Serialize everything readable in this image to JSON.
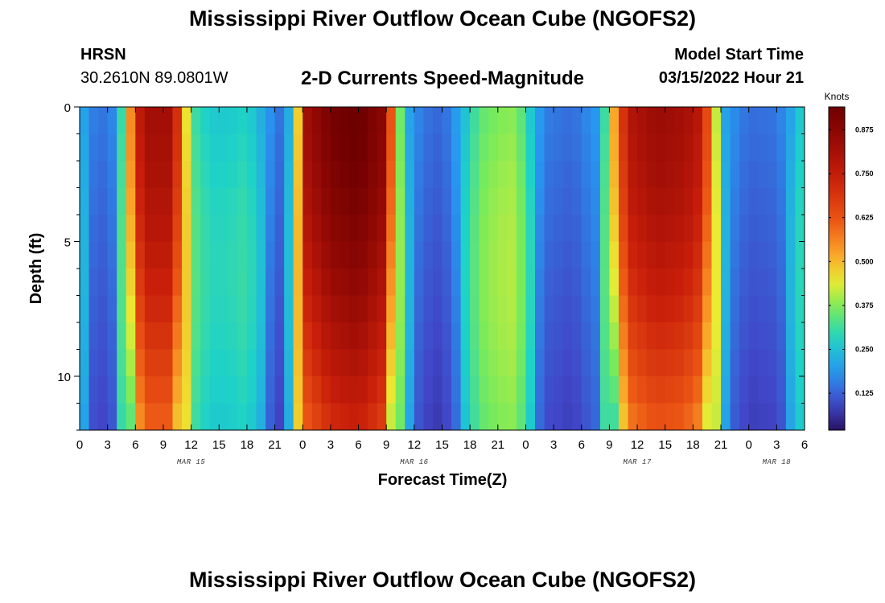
{
  "page": {
    "title": "Mississippi River Outflow Ocean Cube (NGOFS2)",
    "footer_title": "Mississippi River Outflow Ocean Cube (NGOFS2)"
  },
  "station": {
    "code": "HRSN",
    "coords": "30.2610N  89.0801W"
  },
  "model": {
    "start_label": "Model Start Time",
    "start_value": "03/15/2022 Hour 21"
  },
  "chart_data": {
    "type": "heatmap",
    "title": "2-D Currents Speed-Magnitude",
    "xlabel": "Forecast Time(Z)",
    "ylabel": "Depth (ft)",
    "x_tick_labels": [
      "0",
      "3",
      "6",
      "9",
      "12",
      "15",
      "18",
      "21",
      "0",
      "3",
      "6",
      "9",
      "12",
      "15",
      "18",
      "21",
      "0",
      "3",
      "6",
      "9",
      "12",
      "15",
      "18",
      "21",
      "0",
      "3",
      "6"
    ],
    "x_range_hours": [
      0,
      78
    ],
    "x_start": "03/15/2022 00Z",
    "date_labels": [
      {
        "text": "MAR 15",
        "hour": 12
      },
      {
        "text": "MAR 16",
        "hour": 36
      },
      {
        "text": "MAR 17",
        "hour": 60
      },
      {
        "text": "MAR 18",
        "hour": 75
      }
    ],
    "y_tick_labels": [
      "0",
      "5",
      "10"
    ],
    "y_range_ft": [
      0,
      12
    ],
    "y_inverted": true,
    "colorbar": {
      "unit": "Knots",
      "range": [
        0.02,
        0.94
      ],
      "tick_labels": [
        "0.875",
        "0.750",
        "0.625",
        "0.500",
        "0.375",
        "0.250",
        "0.125"
      ],
      "tick_values": [
        0.875,
        0.75,
        0.625,
        0.5,
        0.375,
        0.25,
        0.125
      ]
    },
    "depths_ft": [
      0.5,
      1.5,
      2.5,
      3.5,
      4.5,
      5.5,
      6.5,
      7.5,
      8.5,
      9.5,
      10.5,
      11.5
    ],
    "surface_speed_knots": [
      {
        "hour": 0,
        "v": 0.22
      },
      {
        "hour": 2,
        "v": 0.14
      },
      {
        "hour": 4,
        "v": 0.18
      },
      {
        "hour": 5,
        "v": 0.42
      },
      {
        "hour": 6.2,
        "v": 0.74
      },
      {
        "hour": 7.5,
        "v": 0.82
      },
      {
        "hour": 10,
        "v": 0.82
      },
      {
        "hour": 11,
        "v": 0.58
      },
      {
        "hour": 12,
        "v": 0.32
      },
      {
        "hour": 14,
        "v": 0.26
      },
      {
        "hour": 16,
        "v": 0.26
      },
      {
        "hour": 18,
        "v": 0.28
      },
      {
        "hour": 20,
        "v": 0.2
      },
      {
        "hour": 22,
        "v": 0.13
      },
      {
        "hour": 23.2,
        "v": 0.34
      },
      {
        "hour": 24.3,
        "v": 0.82
      },
      {
        "hour": 27,
        "v": 0.92
      },
      {
        "hour": 30,
        "v": 0.95
      },
      {
        "hour": 32.5,
        "v": 0.88
      },
      {
        "hour": 33.8,
        "v": 0.55
      },
      {
        "hour": 35,
        "v": 0.22
      },
      {
        "hour": 37,
        "v": 0.15
      },
      {
        "hour": 39,
        "v": 0.13
      },
      {
        "hour": 41,
        "v": 0.22
      },
      {
        "hour": 43,
        "v": 0.34
      },
      {
        "hour": 45,
        "v": 0.37
      },
      {
        "hour": 47,
        "v": 0.38
      },
      {
        "hour": 48.5,
        "v": 0.26
      },
      {
        "hour": 50,
        "v": 0.16
      },
      {
        "hour": 53,
        "v": 0.14
      },
      {
        "hour": 56,
        "v": 0.2
      },
      {
        "hour": 57.5,
        "v": 0.52
      },
      {
        "hour": 59,
        "v": 0.78
      },
      {
        "hour": 62,
        "v": 0.84
      },
      {
        "hour": 65,
        "v": 0.82
      },
      {
        "hour": 67,
        "v": 0.76
      },
      {
        "hour": 68.2,
        "v": 0.48
      },
      {
        "hour": 69.5,
        "v": 0.2
      },
      {
        "hour": 72,
        "v": 0.14
      },
      {
        "hour": 75,
        "v": 0.15
      },
      {
        "hour": 77,
        "v": 0.22
      },
      {
        "hour": 78,
        "v": 0.3
      }
    ]
  }
}
